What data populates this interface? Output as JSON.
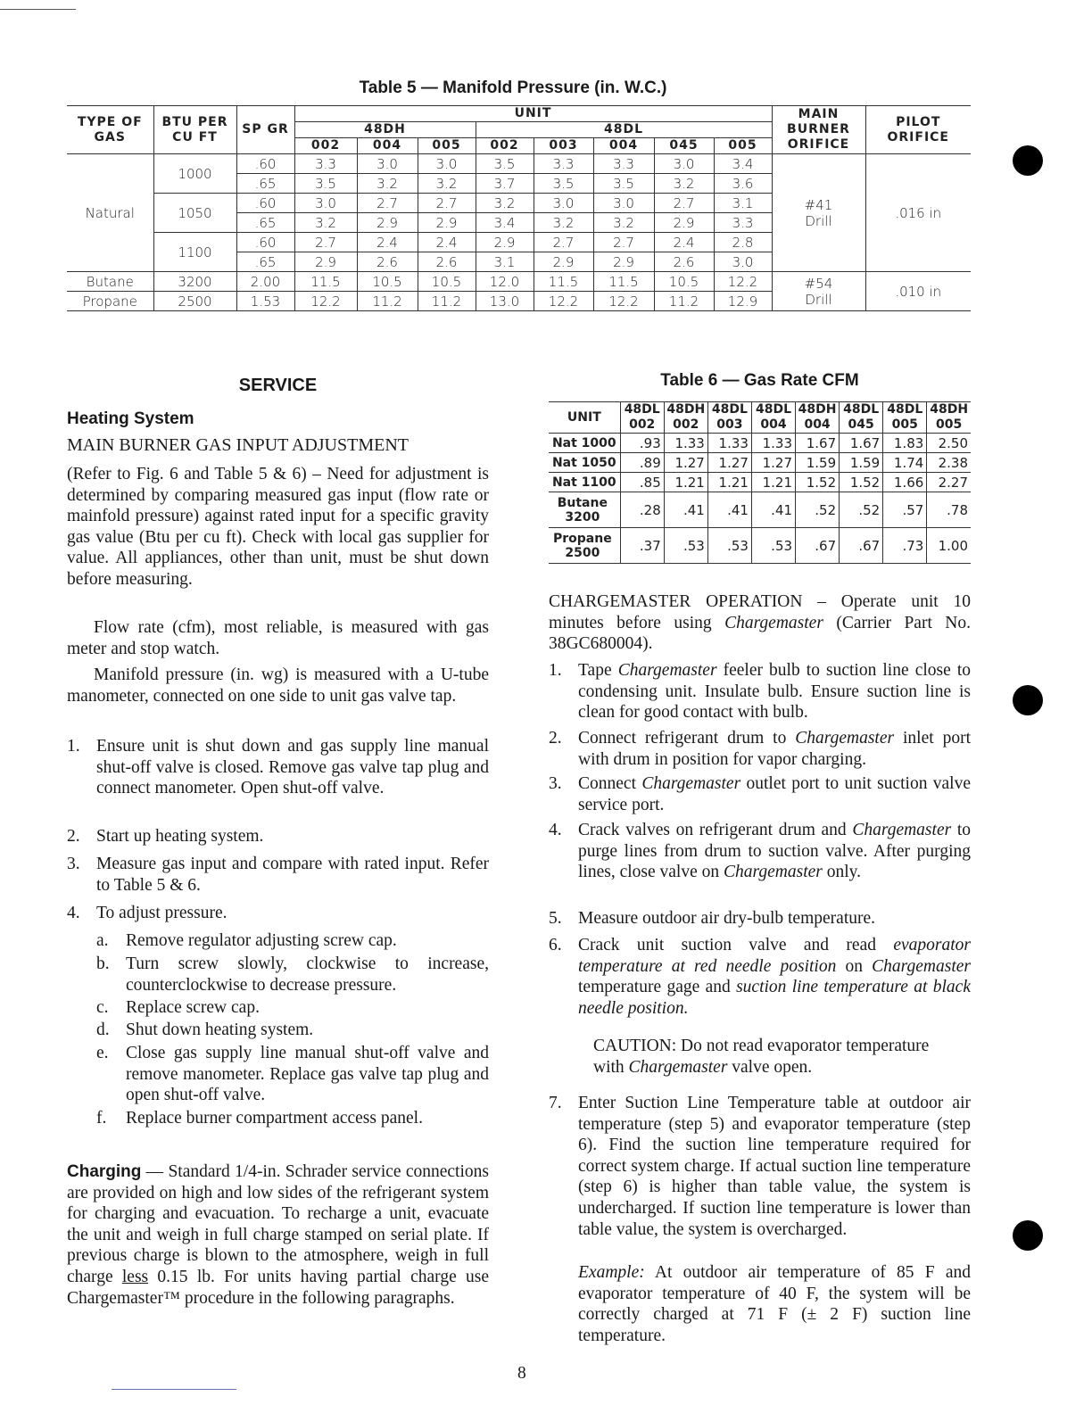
{
  "table5": {
    "caption": "Table 5 — Manifold Pressure (in. W.C.)",
    "headers": {
      "type": "TYPE OF GAS",
      "btu": "BTU PER CU FT",
      "spgr": "SP GR",
      "unit": "UNIT",
      "g48dh": "48DH",
      "g48dl": "48DL",
      "dh_units": [
        "002",
        "004",
        "005"
      ],
      "dl_units": [
        "002",
        "003",
        "004",
        "045",
        "005"
      ],
      "main": "MAIN BURNER ORIFICE",
      "pilot": "PILOT ORIFICE"
    },
    "rows": [
      {
        "type": "Natural",
        "btu": "1000",
        "sp": ".60",
        "v": [
          "3.3",
          "3.0",
          "3.0",
          "3.5",
          "3.3",
          "3.3",
          "3.0",
          "3.4"
        ]
      },
      {
        "sp": ".65",
        "v": [
          "3.5",
          "3.2",
          "3.2",
          "3.7",
          "3.5",
          "3.5",
          "3.2",
          "3.6"
        ]
      },
      {
        "btu": "1050",
        "sp": ".60",
        "v": [
          "3.0",
          "2.7",
          "2.7",
          "3.2",
          "3.0",
          "3.0",
          "2.7",
          "3.1"
        ]
      },
      {
        "sp": ".65",
        "v": [
          "3.2",
          "2.9",
          "2.9",
          "3.4",
          "3.2",
          "3.2",
          "2.9",
          "3.3"
        ]
      },
      {
        "btu": "1100",
        "sp": ".60",
        "v": [
          "2.7",
          "2.4",
          "2.4",
          "2.9",
          "2.7",
          "2.7",
          "2.4",
          "2.8"
        ]
      },
      {
        "sp": ".65",
        "v": [
          "2.9",
          "2.6",
          "2.6",
          "3.1",
          "2.9",
          "2.9",
          "2.6",
          "3.0"
        ]
      },
      {
        "type": "Butane",
        "btu": "3200",
        "sp": "2.00",
        "v": [
          "11.5",
          "10.5",
          "10.5",
          "12.0",
          "11.5",
          "11.5",
          "10.5",
          "12.2"
        ]
      },
      {
        "type": "Propane",
        "btu": "2500",
        "sp": "1.53",
        "v": [
          "12.2",
          "11.2",
          "11.2",
          "13.0",
          "12.2",
          "12.2",
          "11.2",
          "12.9"
        ]
      }
    ],
    "orifice_natural": {
      "main_1": "#41",
      "main_2": "Drill",
      "pilot": ".016 in"
    },
    "orifice_lp": {
      "main_1": "#54",
      "main_2": "Drill",
      "pilot": ".010 in"
    }
  },
  "table6": {
    "caption": "Table 6 — Gas Rate CFM",
    "unit_label": "UNIT",
    "columns": [
      [
        "48DL",
        "002"
      ],
      [
        "48DH",
        "002"
      ],
      [
        "48DL",
        "003"
      ],
      [
        "48DL",
        "004"
      ],
      [
        "48DH",
        "004"
      ],
      [
        "48DL",
        "045"
      ],
      [
        "48DL",
        "005"
      ],
      [
        "48DH",
        "005"
      ]
    ],
    "rows": [
      {
        "label": [
          "Nat 1000"
        ],
        "v": [
          ".93",
          "1.33",
          "1.33",
          "1.33",
          "1.67",
          "1.67",
          "1.83",
          "2.50"
        ]
      },
      {
        "label": [
          "Nat 1050"
        ],
        "v": [
          ".89",
          "1.27",
          "1.27",
          "1.27",
          "1.59",
          "1.59",
          "1.74",
          "2.38"
        ]
      },
      {
        "label": [
          "Nat 1100"
        ],
        "v": [
          ".85",
          "1.21",
          "1.21",
          "1.21",
          "1.52",
          "1.52",
          "1.66",
          "2.27"
        ]
      },
      {
        "label": [
          "Butane",
          "3200"
        ],
        "v": [
          ".28",
          ".41",
          ".41",
          ".41",
          ".52",
          ".52",
          ".57",
          ".78"
        ]
      },
      {
        "label": [
          "Propane",
          "2500"
        ],
        "v": [
          ".37",
          ".53",
          ".53",
          ".53",
          ".67",
          ".67",
          ".73",
          "1.00"
        ]
      }
    ]
  },
  "service": {
    "title": "SERVICE",
    "heating": "Heating System",
    "main_burner": "MAIN BURNER GAS INPUT ADJUSTMENT",
    "p1": "(Refer to Fig. 6 and Table 5 & 6) – Need for adjustment is determined by comparing measured gas input (flow rate or mainfold pressure) against rated input for a specific gravity gas value (Btu per cu ft). Check with local gas supplier for value. All appliances, other than unit, must be shut down before measuring.",
    "p2": "Flow rate (cfm), most reliable, is measured with gas meter and stop watch.",
    "p3": "Manifold pressure (in. wg) is measured with a U-tube manometer, connected on one side to unit gas valve tap.",
    "steps": [
      {
        "n": "1.",
        "t": "Ensure unit is shut down and gas supply line manual shut-off valve is closed. Remove gas valve tap plug and connect manometer. Open shut-off valve."
      },
      {
        "n": "2.",
        "t": "Start up heating system."
      },
      {
        "n": "3.",
        "t": "Measure gas input and compare with rated input. Refer to Table 5 & 6."
      },
      {
        "n": "4.",
        "t": "To adjust pressure."
      }
    ],
    "substeps": [
      {
        "n": "a.",
        "t": "Remove regulator adjusting screw cap."
      },
      {
        "n": "b.",
        "t": "Turn screw slowly, clockwise to increase, counterclockwise to decrease pressure."
      },
      {
        "n": "c.",
        "t": "Replace screw cap."
      },
      {
        "n": "d.",
        "t": "Shut down heating system."
      },
      {
        "n": "e.",
        "t": "Close gas supply line manual shut-off valve and remove manometer. Replace gas valve tap plug and open shut-off valve."
      },
      {
        "n": "f.",
        "t": "Replace burner compartment access panel."
      }
    ],
    "charging_head": "Charging",
    "charging_text": " — Standard 1/4-in. Schrader service connections are provided on high and low sides of the refrigerant system for charging and evacuation. To recharge a unit, evacuate the unit and weigh in full charge stamped on serial plate. If previous charge is blown to the atmosphere, weigh in full charge ",
    "charging_less": "less",
    "charging_text2": " 0.15 lb. For units having partial charge use Chargemaster™ procedure in the following paragraphs."
  },
  "chargemaster": {
    "intro": [
      {
        "t": "CHARGEMASTER OPERATION – Operate unit 10 minutes before using "
      },
      {
        "i": "Chargemaster"
      },
      {
        "t": " (Carrier Part No. 38GC680004)."
      }
    ],
    "steps": [
      {
        "n": "1.",
        "r": [
          {
            "t": "Tape "
          },
          {
            "i": "Chargemaster"
          },
          {
            "t": " feeler bulb to suction line close to condensing unit. Insulate bulb. Ensure suction line is clean for good contact with bulb."
          }
        ]
      },
      {
        "n": "2.",
        "r": [
          {
            "t": "Connect refrigerant drum to "
          },
          {
            "i": "Chargemaster"
          },
          {
            "t": " inlet port with drum in position for vapor charging."
          }
        ]
      },
      {
        "n": "3.",
        "r": [
          {
            "t": "Connect "
          },
          {
            "i": "Chargemaster"
          },
          {
            "t": " outlet port to unit suction valve service port."
          }
        ]
      },
      {
        "n": "4.",
        "r": [
          {
            "t": "Crack valves on refrigerant drum and "
          },
          {
            "i": "Chargemaster"
          },
          {
            "t": " to purge lines from drum to suction valve. After purging lines, close valve on "
          },
          {
            "i": "Chargemaster"
          },
          {
            "t": " only."
          }
        ]
      },
      {
        "n": "5.",
        "r": [
          {
            "t": "Measure outdoor air dry-bulb temperature."
          }
        ]
      },
      {
        "n": "6.",
        "r": [
          {
            "t": "Crack unit suction valve and read "
          },
          {
            "i": "evaporator temperature at red needle position"
          },
          {
            "t": " on "
          },
          {
            "i": "Chargemaster"
          },
          {
            "t": " temperature gage and "
          },
          {
            "i": "suction line temperature at black needle position."
          }
        ]
      }
    ],
    "caution": [
      {
        "t": "CAUTION: Do not read evaporator temperature with "
      },
      {
        "i": "Chargemaster"
      },
      {
        "t": " valve open."
      }
    ],
    "step7": {
      "n": "7.",
      "r": [
        {
          "t": "Enter Suction Line Temperature table at outdoor air temperature (step 5) and evaporator temperature (step 6). Find the suction line temperature required for correct system charge. If actual suction line temperature (step 6) is higher than table value, the system is undercharged. If suction line temperature is lower than table value, the system is overcharged."
        }
      ]
    },
    "example": [
      {
        "i": "Example:"
      },
      {
        "t": " At outdoor air temperature of 85 F and evaporator temperature of 40 F, the system will be correctly charged at 71 F (± 2 F) suction line temperature."
      }
    ]
  },
  "page_number": "8"
}
